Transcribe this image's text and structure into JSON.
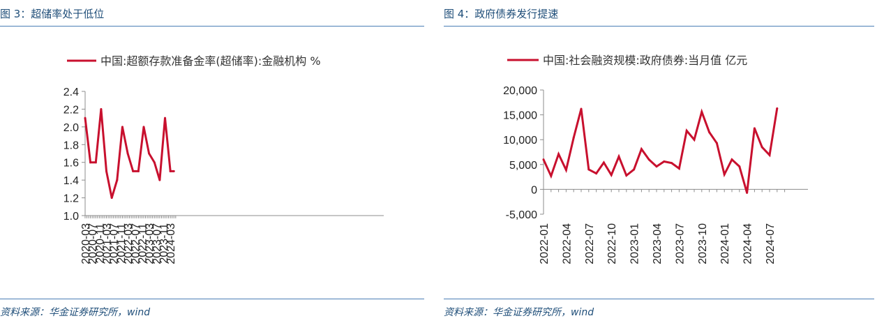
{
  "left": {
    "title": "图 3：超储率处于低位",
    "source": "资料来源：华金证券研究所，wind",
    "chart_data": {
      "type": "line",
      "title": "",
      "legend": "中国:超额存款准备金率(超储率):金融机构 %",
      "legend_position": "top",
      "xlabel": "",
      "ylabel": "",
      "ylim": [
        1.0,
        2.4
      ],
      "yticks": [
        "1.0",
        "1.2",
        "1.4",
        "1.6",
        "1.8",
        "2.0",
        "2.2",
        "2.4"
      ],
      "xticks": [
        "2020-03",
        "2020-07",
        "2020-11",
        "2021-03",
        "2021-07",
        "2021-11",
        "2022-03",
        "2022-07",
        "2022-11",
        "2023-03",
        "2023-07",
        "2023-11",
        "2024-03"
      ],
      "color": "#c8102e",
      "grid": false,
      "series": [
        {
          "x": [
            "2020-03",
            "2020-06",
            "2020-09",
            "2020-12",
            "2021-03",
            "2021-06",
            "2021-09",
            "2021-12",
            "2022-03",
            "2022-06",
            "2022-09",
            "2022-12",
            "2023-03",
            "2023-06",
            "2023-09",
            "2023-12",
            "2024-03",
            "2024-05"
          ],
          "values": [
            2.1,
            1.6,
            1.6,
            2.2,
            1.5,
            1.2,
            1.4,
            2.0,
            1.7,
            1.5,
            1.5,
            2.0,
            1.7,
            1.6,
            1.4,
            2.1,
            1.5,
            1.5
          ]
        }
      ]
    }
  },
  "right": {
    "title": "图 4：政府债券发行提速",
    "source": "资料来源：华金证券研究所，wind",
    "chart_data": {
      "type": "line",
      "title": "",
      "legend": "中国:社会融资规模:政府债券:当月值 亿元",
      "legend_position": "top",
      "xlabel": "",
      "ylabel": "",
      "ylim": [
        -5000,
        20000
      ],
      "yticks": [
        "-5,000",
        "0",
        "5,000",
        "10,000",
        "15,000",
        "20,000"
      ],
      "xticks": [
        "2022-01",
        "2022-04",
        "2022-07",
        "2022-10",
        "2023-01",
        "2023-04",
        "2023-07",
        "2023-10",
        "2024-01",
        "2024-04",
        "2024-07"
      ],
      "color": "#c8102e",
      "grid": false,
      "series": [
        {
          "x": [
            "2022-01",
            "2022-02",
            "2022-03",
            "2022-04",
            "2022-05",
            "2022-06",
            "2022-07",
            "2022-08",
            "2022-09",
            "2022-10",
            "2022-11",
            "2022-12",
            "2023-01",
            "2023-02",
            "2023-03",
            "2023-04",
            "2023-05",
            "2023-06",
            "2023-07",
            "2023-08",
            "2023-09",
            "2023-10",
            "2023-11",
            "2023-12",
            "2024-01",
            "2024-02",
            "2024-03",
            "2024-04",
            "2024-05",
            "2024-06",
            "2024-07",
            "2024-08"
          ],
          "values": [
            6000,
            2700,
            7100,
            3900,
            10400,
            16200,
            4000,
            3200,
            5400,
            2900,
            6600,
            2800,
            4000,
            8100,
            6000,
            4600,
            5600,
            5300,
            4200,
            11800,
            10000,
            15600,
            11500,
            9300,
            3000,
            6000,
            4600,
            -700,
            12300,
            8500,
            6900,
            16300
          ]
        }
      ]
    }
  }
}
